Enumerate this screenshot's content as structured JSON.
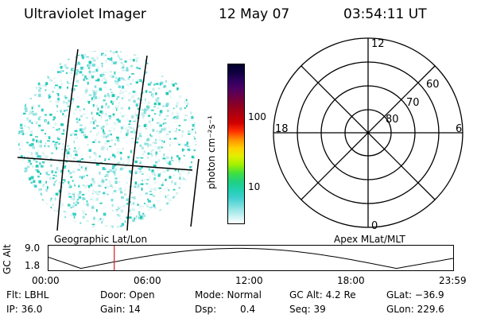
{
  "header": {
    "instrument": "Ultraviolet Imager",
    "date": "12 May 07",
    "time": "03:54:11 UT"
  },
  "colorbar": {
    "label": "photon cm⁻²s⁻¹",
    "ticks": [
      "100",
      "10"
    ],
    "colors": [
      "#000030",
      "#100040",
      "#300060",
      "#500060",
      "#700040",
      "#900020",
      "#b00010",
      "#d00000",
      "#ff3000",
      "#ff9000",
      "#ffd000",
      "#e0f000",
      "#a0f000",
      "#40e040",
      "#20d080",
      "#20d0b0",
      "#40d0d0",
      "#80e0e0",
      "#c0f0f0",
      "#ffffff"
    ]
  },
  "polar": {
    "mlt_labels": {
      "top": "12",
      "left": "18",
      "right": "6",
      "bottom": "0"
    },
    "lat_labels": [
      "60",
      "70",
      "80"
    ]
  },
  "timeline": {
    "left_label": "Geographic Lat/Lon",
    "right_label": "Apex MLat/MLT",
    "y_axis_label": "GC Alt",
    "y_ticks": [
      "9.0",
      "1.8"
    ],
    "x_ticks": [
      "00:00",
      "06:00",
      "12:00",
      "18:00",
      "23:59"
    ],
    "marker_time": "03:54"
  },
  "footer": {
    "flt_label": "Flt: LBHL",
    "ip_label": "IP: 36.0",
    "door_label": "Door: Open",
    "gain_label": "Gain: 14",
    "mode_label": "Mode: Normal",
    "dsp_label": "Dsp:",
    "dsp_value": "0.4",
    "gcalt_label": "GC Alt: 4.2 Re",
    "seq_label": "Seq: 39",
    "glat_label": "GLat: −36.9",
    "glon_label": "GLon: 229.6"
  }
}
